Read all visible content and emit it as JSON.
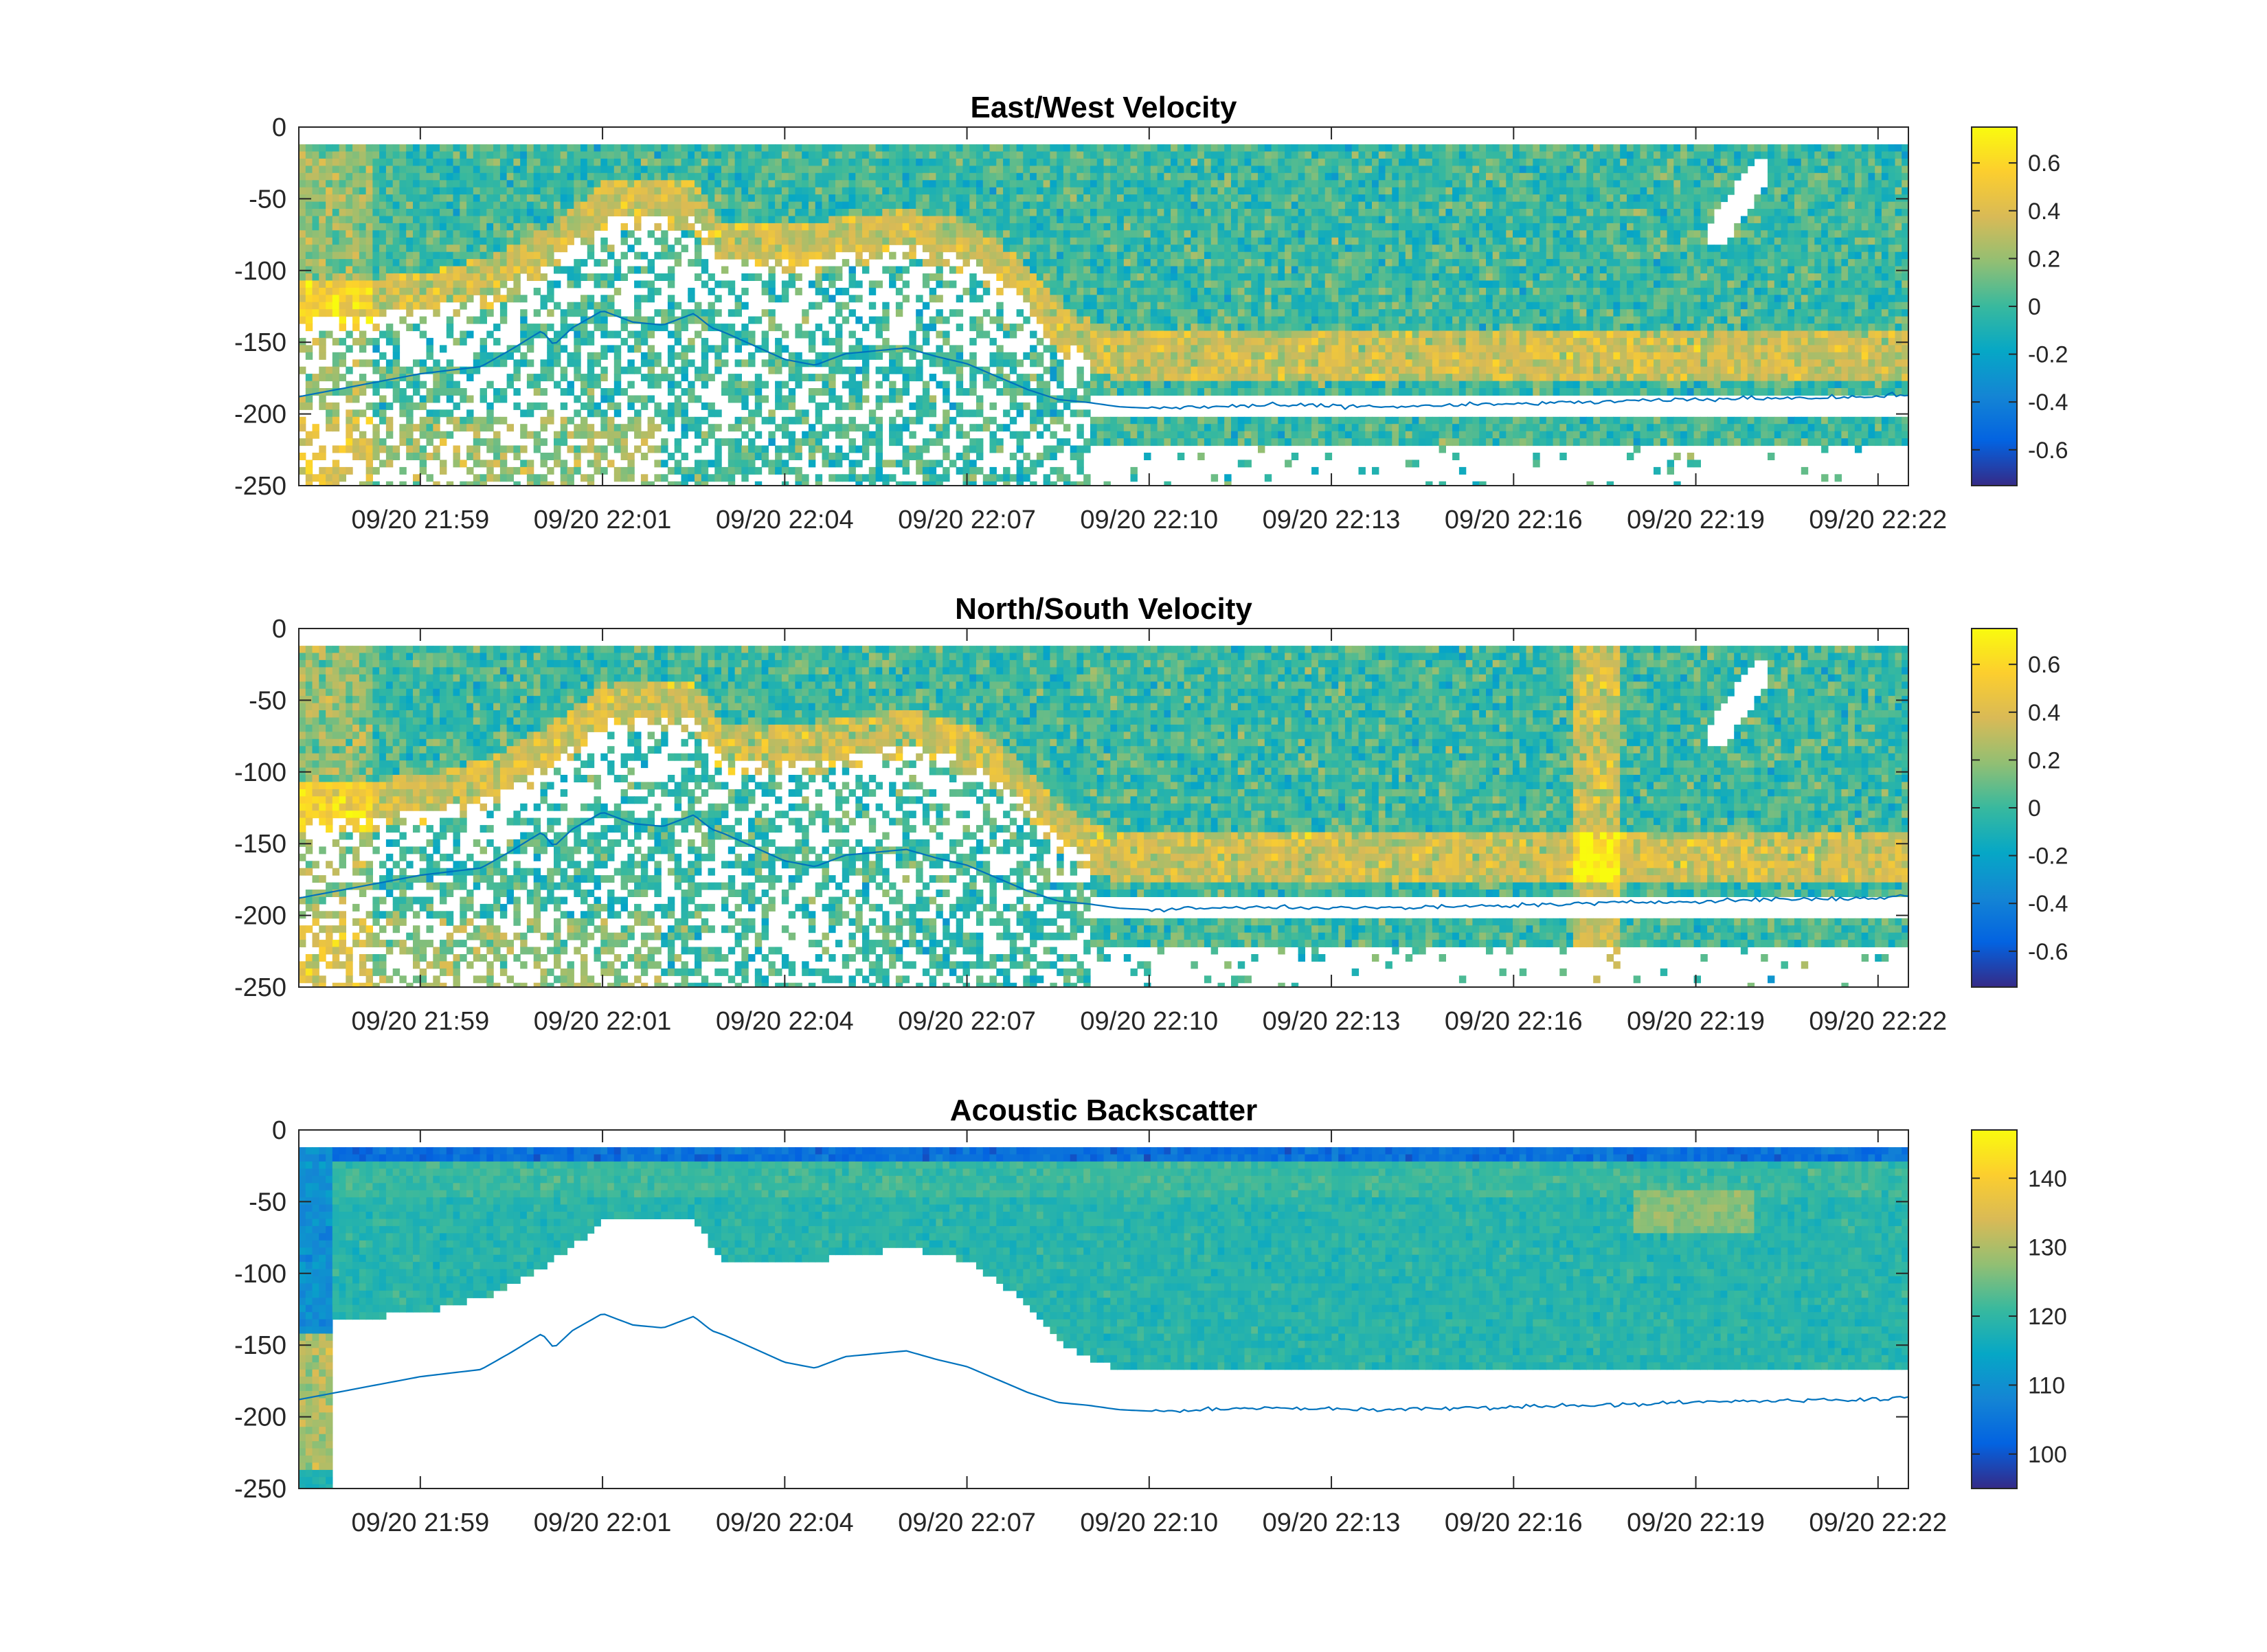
{
  "figure": {
    "background": "#ffffff",
    "colormap": "parula",
    "colormap_stops": [
      "#352a87",
      "#0363e1",
      "#1485d4",
      "#06a7c6",
      "#38b99e",
      "#92bf73",
      "#d9ba56",
      "#fcce2e",
      "#f9fb0e"
    ]
  },
  "chart_data": [
    {
      "type": "heatmap",
      "title": "East/West Velocity",
      "xlabel": "",
      "ylabel": "",
      "x_tick_labels": [
        "09/20 21:59",
        "09/20 22:01",
        "09/20 22:04",
        "09/20 22:07",
        "09/20 22:10",
        "09/20 22:13",
        "09/20 22:16",
        "09/20 22:19",
        "09/20 22:22"
      ],
      "y_ticks": [
        0,
        -50,
        -100,
        -150,
        -200,
        -250
      ],
      "y_tick_labels": [
        "0",
        "-50",
        "-100",
        "-150",
        "-200",
        "-250"
      ],
      "ylim": [
        -250,
        0
      ],
      "xlim_minutes": [
        0,
        26.5
      ],
      "x_tick_minutes": [
        2,
        5,
        8,
        11,
        14,
        17,
        20,
        23,
        26
      ],
      "color_limits": [
        -0.75,
        0.75
      ],
      "colorbar_ticks": [
        0.6,
        0.4,
        0.2,
        0,
        -0.2,
        -0.4,
        -0.6
      ],
      "colorbar_tick_labels": [
        "0.6",
        "0.4",
        "0.2",
        "0",
        "-0.2",
        "-0.4",
        "-0.6"
      ],
      "grid": false,
      "colorbar": "right",
      "overlay_line": "bottom depth",
      "overlay_color": "#0072bd"
    },
    {
      "type": "heatmap",
      "title": "North/South Velocity",
      "xlabel": "",
      "ylabel": "",
      "x_tick_labels": [
        "09/20 21:59",
        "09/20 22:01",
        "09/20 22:04",
        "09/20 22:07",
        "09/20 22:10",
        "09/20 22:13",
        "09/20 22:16",
        "09/20 22:19",
        "09/20 22:22"
      ],
      "y_ticks": [
        0,
        -50,
        -100,
        -150,
        -200,
        -250
      ],
      "y_tick_labels": [
        "0",
        "-50",
        "-100",
        "-150",
        "-200",
        "-250"
      ],
      "ylim": [
        -250,
        0
      ],
      "xlim_minutes": [
        0,
        26.5
      ],
      "x_tick_minutes": [
        2,
        5,
        8,
        11,
        14,
        17,
        20,
        23,
        26
      ],
      "color_limits": [
        -0.75,
        0.75
      ],
      "colorbar_ticks": [
        0.6,
        0.4,
        0.2,
        0,
        -0.2,
        -0.4,
        -0.6
      ],
      "colorbar_tick_labels": [
        "0.6",
        "0.4",
        "0.2",
        "0",
        "-0.2",
        "-0.4",
        "-0.6"
      ],
      "grid": false,
      "colorbar": "right",
      "overlay_line": "bottom depth",
      "overlay_color": "#0072bd"
    },
    {
      "type": "heatmap",
      "title": "Acoustic Backscatter",
      "xlabel": "",
      "ylabel": "",
      "x_tick_labels": [
        "09/20 21:59",
        "09/20 22:01",
        "09/20 22:04",
        "09/20 22:07",
        "09/20 22:10",
        "09/20 22:13",
        "09/20 22:16",
        "09/20 22:19",
        "09/20 22:22"
      ],
      "y_ticks": [
        0,
        -50,
        -100,
        -150,
        -200,
        -250
      ],
      "y_tick_labels": [
        "0",
        "-50",
        "-100",
        "-150",
        "-200",
        "-250"
      ],
      "ylim": [
        -250,
        0
      ],
      "xlim_minutes": [
        0,
        26.5
      ],
      "x_tick_minutes": [
        2,
        5,
        8,
        11,
        14,
        17,
        20,
        23,
        26
      ],
      "color_limits": [
        95,
        147
      ],
      "colorbar_ticks": [
        140,
        130,
        120,
        110,
        100
      ],
      "colorbar_tick_labels": [
        "140",
        "130",
        "120",
        "110",
        "100"
      ],
      "grid": false,
      "colorbar": "right",
      "overlay_line": "bottom depth",
      "overlay_color": "#0072bd"
    }
  ],
  "bottom_depth_profile": {
    "minutes": [
      0,
      1,
      2,
      3,
      3.5,
      4,
      4.2,
      4.5,
      5,
      5.5,
      6,
      6.5,
      6.8,
      7,
      8,
      8.5,
      9,
      10,
      10.5,
      11,
      12,
      12.5,
      13,
      13.5,
      14,
      16,
      18,
      20,
      22,
      24,
      26,
      26.5
    ],
    "depth": [
      -188,
      -180,
      -172,
      -167,
      -155,
      -142,
      -152,
      -140,
      -128,
      -136,
      -138,
      -130,
      -140,
      -143,
      -162,
      -166,
      -158,
      -154,
      -160,
      -165,
      -183,
      -190,
      -192,
      -195,
      -196,
      -194,
      -195,
      -193,
      -191,
      -189,
      -188,
      -186
    ]
  }
}
